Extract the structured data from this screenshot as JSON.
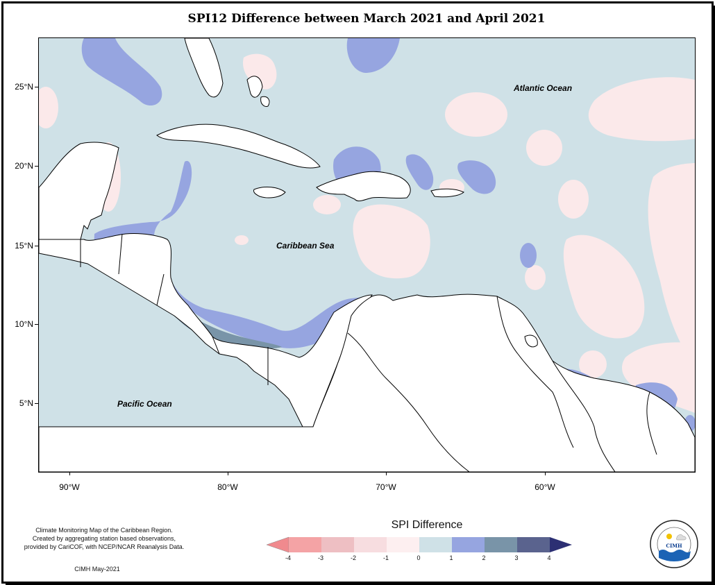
{
  "title": "SPI12 Difference between March 2021 and April 2021",
  "map": {
    "lat_ticks": [
      "25°N",
      "20°N",
      "15°N",
      "10°N",
      "5°N"
    ],
    "lon_ticks": [
      "90°W",
      "80°W",
      "70°W",
      "60°W"
    ],
    "labels": {
      "atlantic": "Atlantic Ocean",
      "caribbean": "Caribbean Sea",
      "pacific": "Pacific Ocean"
    },
    "colors": {
      "ocean_neutral": "#cfe1e7",
      "positive_1_2": "#96a5e0",
      "positive_2_3": "#7994a8",
      "negative_0_1": "#fbe9ea",
      "land": "#ffffff"
    }
  },
  "credits": {
    "text": [
      "Climate Monitoring Map of the Caribbean Region.",
      "Created by aggregating station based observations,",
      "provided by CariCOF, with NCEP/NCAR Reanalysis Data."
    ],
    "date": "CIMH May-2021"
  },
  "legend": {
    "title": "SPI Difference",
    "labels": [
      "-4",
      "-3",
      "-2",
      "-1",
      "0",
      "1",
      "2",
      "3",
      "4"
    ],
    "colors": [
      "#f4a3a5",
      "#eebfc3",
      "#f7dde0",
      "#fdeff0",
      "#cfe1e7",
      "#96a5e0",
      "#7994a8",
      "#5a638e"
    ],
    "arrow_left_color": "#f08a8e",
    "arrow_right_color": "#2c2f73"
  },
  "logo": {
    "text": "CIMH",
    "ring_text": "Caribbean Institute for Meteorology and Hydrology"
  }
}
